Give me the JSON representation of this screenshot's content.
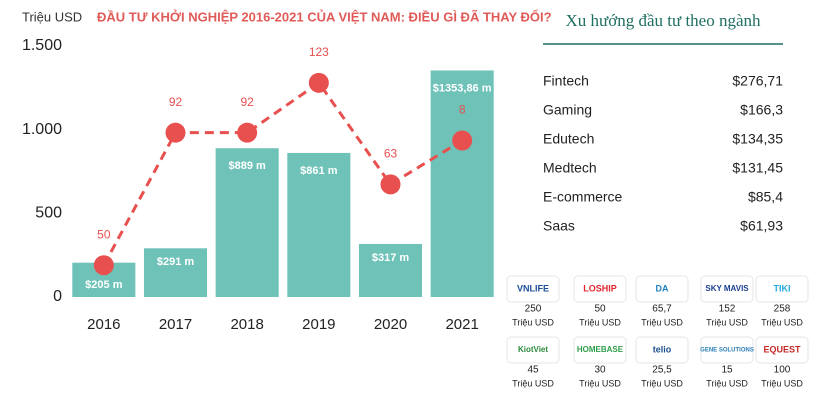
{
  "chart_data": {
    "type": "bar",
    "title": "ĐẦU TƯ KHỞI NGHIỆP 2016-2021 CỦA VIỆT NAM: ĐIỀU GÌ ĐÃ THAY ĐỔI?",
    "y_label": "Triệu USD",
    "categories": [
      "2016",
      "2017",
      "2018",
      "2019",
      "2020",
      "2021"
    ],
    "values": [
      205,
      291,
      889,
      861,
      317,
      1353.86
    ],
    "value_labels": [
      "$205 m",
      "$291 m",
      "$889 m",
      "$861 m",
      "$317 m",
      "$1353,86 m"
    ],
    "color": "#6fc2b8",
    "ylim": [
      0,
      1500
    ],
    "yticks": [
      0,
      500,
      {
        "value": 1000,
        "label": "1.000"
      },
      {
        "value": 1500,
        "label": "1.500"
      }
    ],
    "line": {
      "values": [
        190,
        982,
        982,
        1280,
        673,
        935
      ],
      "labels": [
        "50",
        "92",
        "92",
        "123",
        "63",
        "8"
      ],
      "color": "#e8504f"
    }
  },
  "sectors": {
    "title": "Xu hướng đầu tư theo ngành",
    "rows": [
      [
        "Fintech",
        "$276,71"
      ],
      [
        "Gaming",
        "$166,3"
      ],
      [
        "Edutech",
        "$134,35"
      ],
      [
        "Medtech",
        "$131,45"
      ],
      [
        "E-commerce",
        "$85,4"
      ],
      [
        "Saas",
        "$61,93"
      ]
    ]
  },
  "companies": {
    "unit": "Triệu USD",
    "items": [
      {
        "logo": "VNLIFE",
        "value": "250"
      },
      {
        "logo": "LOSHIP",
        "value": "50"
      },
      {
        "logo": "DA",
        "value": "65,7"
      },
      {
        "logo": "SKY MAVIS",
        "value": "152"
      },
      {
        "logo": "TIKI",
        "value": "258"
      },
      {
        "logo": "KiotViet",
        "value": "45"
      },
      {
        "logo": "HOMEBASE",
        "value": "30"
      },
      {
        "logo": "telio",
        "value": "25,5"
      },
      {
        "logo": "GENE SOLUTIONS",
        "value": "15"
      },
      {
        "logo": "EQUEST",
        "value": "100"
      }
    ]
  }
}
